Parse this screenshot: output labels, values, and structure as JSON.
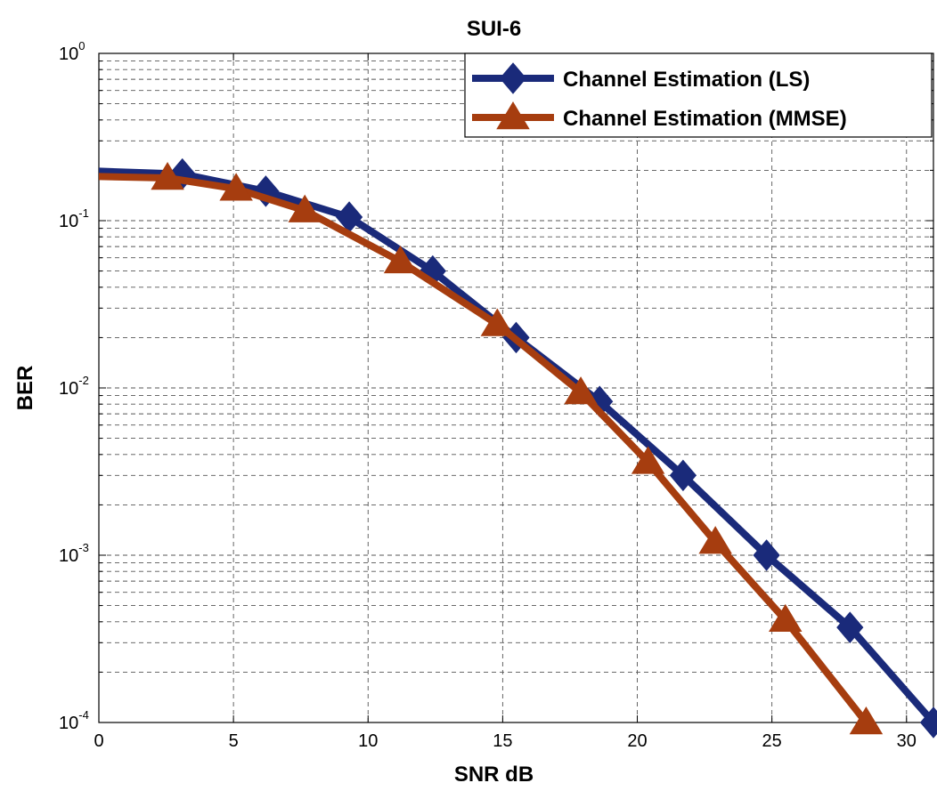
{
  "chart_data": {
    "type": "line",
    "title": "SUI-6",
    "xlabel": "SNR dB",
    "ylabel": "BER",
    "xlim": [
      0,
      31
    ],
    "ylim": [
      0.0001,
      1
    ],
    "yscale": "log",
    "grid": true,
    "legend_position": "top-right",
    "x_ticks": [
      0,
      5,
      10,
      15,
      20,
      25,
      30
    ],
    "y_ticks": [
      {
        "value": 1,
        "base": "10",
        "exp": "0"
      },
      {
        "value": 0.1,
        "base": "10",
        "exp": "-1"
      },
      {
        "value": 0.01,
        "base": "10",
        "exp": "-2"
      },
      {
        "value": 0.001,
        "base": "10",
        "exp": "-3"
      },
      {
        "value": 0.0001,
        "base": "10",
        "exp": "-4"
      }
    ],
    "series": [
      {
        "name": "Channel Estimation (LS)",
        "color": "#1a2a7a",
        "marker": "diamond",
        "x": [
          -1,
          3.1,
          6.2,
          9.3,
          12.4,
          15.5,
          18.6,
          21.7,
          24.8,
          27.9,
          31
        ],
        "y": [
          0.2,
          0.19,
          0.15,
          0.105,
          0.05,
          0.02,
          0.0083,
          0.003,
          0.001,
          0.00037,
          0.0001
        ]
      },
      {
        "name": "Channel Estimation (MMSE)",
        "color": "#a63d0f",
        "marker": "triangle",
        "x": [
          -1,
          2.55,
          5.1,
          7.65,
          11.2,
          14.8,
          17.9,
          20.4,
          22.9,
          25.5,
          28.5
        ],
        "y": [
          0.185,
          0.18,
          0.155,
          0.115,
          0.057,
          0.024,
          0.0094,
          0.0036,
          0.0012,
          0.00041,
          0.0001
        ]
      }
    ]
  }
}
